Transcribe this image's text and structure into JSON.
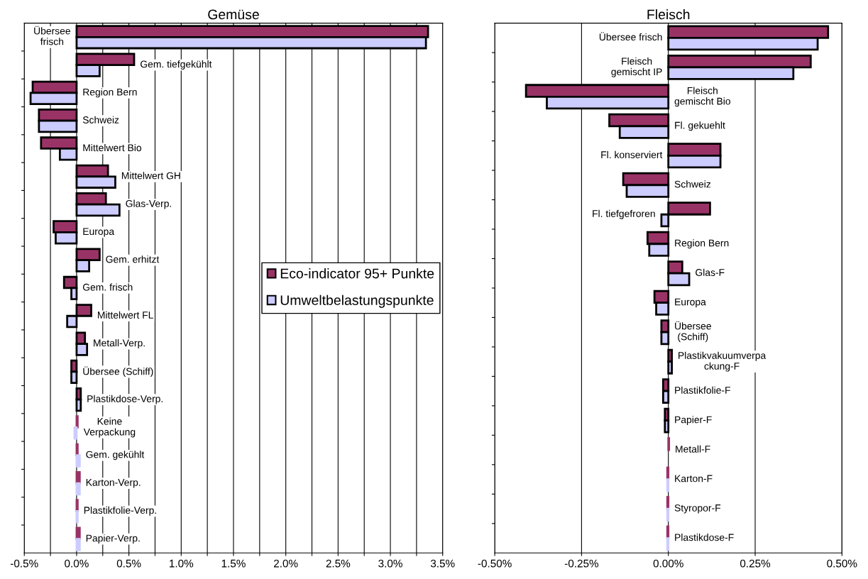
{
  "chart_data": [
    {
      "type": "bar",
      "orientation": "horizontal",
      "title": "Gemüse",
      "categories": [
        "Übersee\nfrisch",
        "Gem. tiefgekühlt",
        "Region Bern",
        "Schweiz",
        "Mittelwert Bio",
        "Mittelwert GH",
        "Glas-Verp.",
        "Europa",
        "Gem. erhitzt",
        "Gem. frisch",
        "Mittelwert FL",
        "Metall-Verp.",
        "Übersee (Schiff)",
        "Plastikdose-Verp.",
        "Keine\nVerpackung",
        "Gem. gekühlt",
        "Karton-Verp.",
        "Plastikfolie-Verp.",
        "Papier-Verp."
      ],
      "series": [
        {
          "name": "Eco-indicator 95+ Punkte",
          "color": "#993366",
          "values": [
            3.36,
            0.55,
            -0.42,
            -0.36,
            -0.34,
            0.3,
            0.28,
            -0.22,
            0.22,
            -0.12,
            0.14,
            0.08,
            -0.05,
            0.04,
            0.01,
            0.01,
            0.03,
            0.01,
            0.03
          ]
        },
        {
          "name": "Umweltbelastungspunkte",
          "color": "#ccccff",
          "values": [
            3.34,
            0.22,
            -0.44,
            -0.36,
            -0.16,
            0.37,
            0.41,
            -0.2,
            0.12,
            -0.05,
            -0.09,
            0.1,
            -0.05,
            0.04,
            -0.02,
            0.03,
            0.03,
            0.01,
            0.03
          ]
        }
      ],
      "xlim": [
        -0.5,
        3.5
      ],
      "xticks": [
        {
          "value": -0.5,
          "label": "-0.5%"
        },
        {
          "value": -0.25,
          "label": null
        },
        {
          "value": 0,
          "label": "0.0%"
        },
        {
          "value": 0.25,
          "label": null
        },
        {
          "value": 0.5,
          "label": "0.5%"
        },
        {
          "value": 0.75,
          "label": null
        },
        {
          "value": 1.0,
          "label": "1.0%"
        },
        {
          "value": 1.25,
          "label": null
        },
        {
          "value": 1.5,
          "label": "1.5%"
        },
        {
          "value": 1.75,
          "label": null
        },
        {
          "value": 2.0,
          "label": "2.0%"
        },
        {
          "value": 2.25,
          "label": null
        },
        {
          "value": 2.5,
          "label": "2.5%"
        },
        {
          "value": 2.75,
          "label": null
        },
        {
          "value": 3.0,
          "label": "3.0%"
        },
        {
          "value": 3.25,
          "label": null
        },
        {
          "value": 3.5,
          "label": "3.5%"
        }
      ],
      "grid": "x",
      "legend": "center right",
      "tick_labels": "x"
    },
    {
      "type": "bar",
      "orientation": "horizontal",
      "title": "Fleisch",
      "categories": [
        "Übersee frisch",
        "Fleisch\ngemischt IP",
        "Fleisch\ngemischt Bio",
        "Fl. gekuehlt",
        "Fl. konserviert",
        "Schweiz",
        "Fl. tiefgefroren",
        "Region Bern",
        "Glas-F",
        "Europa",
        "Übersee\n(Schiff)",
        "Plastikvakuumverpa\nckung-F",
        "Plastikfolie-F",
        "Papier-F",
        "Metall-F",
        "Karton-F",
        "Styropor-F",
        "Plastikdose-F"
      ],
      "series": [
        {
          "color": "#993366",
          "values": [
            0.46,
            0.41,
            -0.41,
            -0.17,
            0.15,
            -0.13,
            0.12,
            -0.06,
            0.04,
            -0.04,
            -0.02,
            0.01,
            -0.015,
            -0.01,
            0.002,
            -0.003,
            -0.003,
            -0.003
          ]
        },
        {
          "color": "#ccccff",
          "values": [
            0.43,
            0.36,
            -0.35,
            -0.14,
            0.15,
            -0.12,
            -0.02,
            -0.055,
            0.06,
            -0.035,
            -0.02,
            0.01,
            -0.015,
            -0.01,
            null,
            -0.003,
            -0.003,
            -0.003
          ]
        }
      ],
      "xlim": [
        -0.5,
        0.5
      ],
      "xticks": [
        {
          "value": -0.5,
          "label": "-0.50%"
        },
        {
          "value": -0.25,
          "label": "-0.25%"
        },
        {
          "value": 0,
          "label": "0.00%"
        },
        {
          "value": 0.25,
          "label": "0.25%"
        },
        {
          "value": 0.5,
          "label": "0.50%"
        }
      ],
      "grid": "x",
      "tick_labels": "x"
    }
  ]
}
